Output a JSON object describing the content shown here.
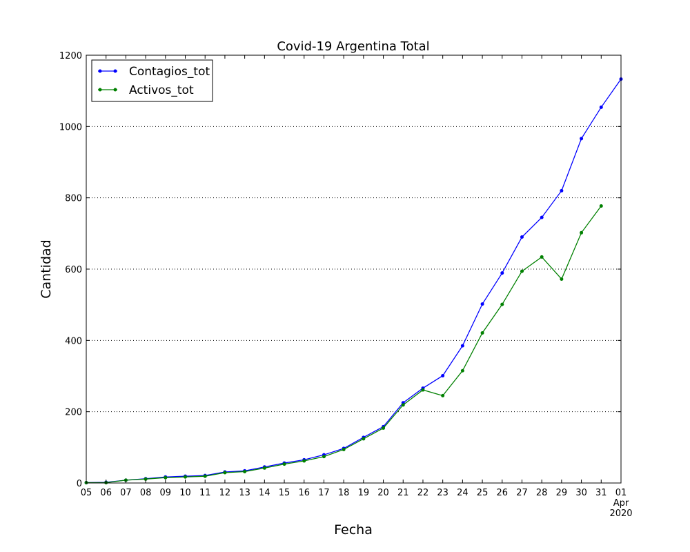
{
  "chart_data": {
    "type": "line",
    "title": "Covid-19 Argentina Total",
    "xlabel": "Fecha",
    "ylabel": "Cantidad",
    "x": [
      "2020-03-05",
      "2020-03-06",
      "2020-03-07",
      "2020-03-08",
      "2020-03-09",
      "2020-03-10",
      "2020-03-11",
      "2020-03-12",
      "2020-03-13",
      "2020-03-14",
      "2020-03-15",
      "2020-03-16",
      "2020-03-17",
      "2020-03-18",
      "2020-03-19",
      "2020-03-20",
      "2020-03-21",
      "2020-03-22",
      "2020-03-23",
      "2020-03-24",
      "2020-03-25",
      "2020-03-26",
      "2020-03-27",
      "2020-03-28",
      "2020-03-29",
      "2020-03-30",
      "2020-03-31",
      "2020-04-01"
    ],
    "x_tick_labels": [
      "05",
      "06",
      "07",
      "08",
      "09",
      "10",
      "11",
      "12",
      "13",
      "14",
      "15",
      "16",
      "17",
      "18",
      "19",
      "20",
      "21",
      "22",
      "23",
      "24",
      "25",
      "26",
      "27",
      "28",
      "29",
      "30",
      "31",
      "01"
    ],
    "x_tick_sublabels": {
      "last": [
        "Apr",
        "2020"
      ]
    },
    "xlim": [
      "2020-03-05",
      "2020-04-01"
    ],
    "ylim": [
      0,
      1200
    ],
    "y_ticks": [
      0,
      200,
      400,
      600,
      800,
      1000,
      1200
    ],
    "grid": "y-dotted",
    "legend_position": "top-left",
    "series": [
      {
        "name": "Contagios_tot",
        "color": "#0000ff",
        "values": [
          1,
          2,
          8,
          12,
          17,
          19,
          21,
          31,
          34,
          45,
          56,
          65,
          79,
          97,
          128,
          158,
          225,
          266,
          301,
          385,
          502,
          589,
          690,
          745,
          820,
          966,
          1054,
          1133
        ]
      },
      {
        "name": "Activos_tot",
        "color": "#008000",
        "values": [
          1,
          1,
          8,
          11,
          15,
          17,
          19,
          29,
          32,
          42,
          53,
          62,
          74,
          94,
          124,
          154,
          219,
          261,
          245,
          315,
          421,
          501,
          594,
          634,
          572,
          702,
          777,
          null
        ]
      }
    ]
  }
}
